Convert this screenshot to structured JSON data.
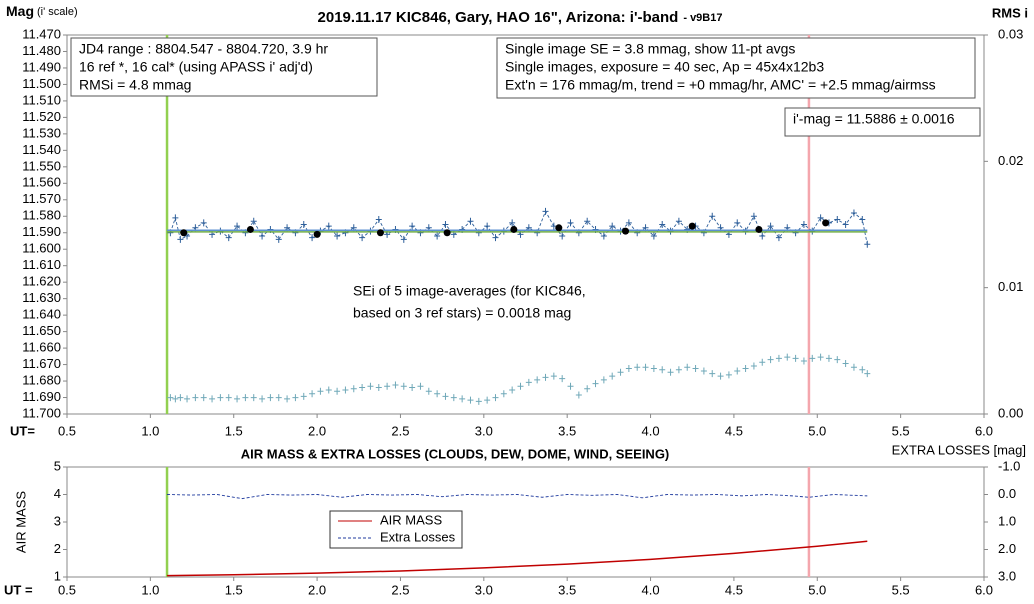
{
  "chart_data": [
    {
      "type": "line",
      "title": "2019.11.17 KIC846, Gary, HAO 16\", Arizona: i'-band",
      "subtitle": "- v9B17",
      "ylabel": "Mag",
      "ylabel_note": "(i' scale)",
      "y2label": "RMS i",
      "xlabel": "UT=",
      "xlim": [
        0.5,
        6.0
      ],
      "xticks": [
        0.5,
        {
          "value": 1,
          "label": "1.0"
        },
        1.5,
        {
          "value": 2,
          "label": "2.0"
        },
        2.5,
        {
          "value": 3,
          "label": "3.0"
        },
        3.5,
        {
          "value": 4,
          "label": "4.0"
        },
        4.5,
        {
          "value": 5,
          "label": "5.0"
        },
        5.5,
        {
          "value": 6,
          "label": "6.0"
        }
      ],
      "ylim": [
        11.7,
        11.47
      ],
      "yticks": [
        {
          "value": 11.47,
          "label": "11.470"
        },
        {
          "value": 11.48,
          "label": "11.480"
        },
        {
          "value": 11.49,
          "label": "11.490"
        },
        {
          "value": 11.5,
          "label": "11.500"
        },
        {
          "value": 11.51,
          "label": "11.510"
        },
        {
          "value": 11.52,
          "label": "11.520"
        },
        {
          "value": 11.53,
          "label": "11.530"
        },
        {
          "value": 11.54,
          "label": "11.540"
        },
        {
          "value": 11.55,
          "label": "11.550"
        },
        {
          "value": 11.56,
          "label": "11.560"
        },
        {
          "value": 11.57,
          "label": "11.570"
        },
        {
          "value": 11.58,
          "label": "11.580"
        },
        {
          "value": 11.59,
          "label": "11.590"
        },
        {
          "value": 11.6,
          "label": "11.600"
        },
        {
          "value": 11.61,
          "label": "11.610"
        },
        {
          "value": 11.62,
          "label": "11.620"
        },
        {
          "value": 11.63,
          "label": "11.630"
        },
        {
          "value": 11.64,
          "label": "11.640"
        },
        {
          "value": 11.65,
          "label": "11.650"
        },
        {
          "value": 11.66,
          "label": "11.660"
        },
        {
          "value": 11.67,
          "label": "11.670"
        },
        {
          "value": 11.68,
          "label": "11.680"
        },
        {
          "value": 11.69,
          "label": "11.690"
        },
        {
          "value": 11.7,
          "label": "11.700"
        }
      ],
      "y2lim": [
        0,
        0.03
      ],
      "y2ticks": [
        {
          "value": 0,
          "label": "0.00"
        },
        {
          "value": 0.01,
          "label": "0.01"
        },
        {
          "value": 0.02,
          "label": "0.02"
        },
        {
          "value": 0.03,
          "label": "0.03"
        }
      ],
      "vlines": [
        {
          "x": 1.1,
          "color": "#92d050"
        },
        {
          "x": 4.95,
          "color": "#f4a6ad"
        }
      ],
      "x": [
        1.12,
        1.15,
        1.18,
        1.22,
        1.27,
        1.32,
        1.37,
        1.42,
        1.47,
        1.52,
        1.57,
        1.62,
        1.67,
        1.72,
        1.77,
        1.82,
        1.87,
        1.92,
        1.97,
        2.02,
        2.07,
        2.12,
        2.17,
        2.22,
        2.27,
        2.32,
        2.37,
        2.42,
        2.47,
        2.52,
        2.57,
        2.62,
        2.67,
        2.72,
        2.77,
        2.82,
        2.87,
        2.92,
        2.97,
        3.02,
        3.07,
        3.12,
        3.17,
        3.22,
        3.27,
        3.32,
        3.37,
        3.42,
        3.47,
        3.52,
        3.57,
        3.62,
        3.67,
        3.72,
        3.77,
        3.82,
        3.87,
        3.92,
        3.97,
        4.02,
        4.07,
        4.12,
        4.17,
        4.22,
        4.27,
        4.32,
        4.37,
        4.42,
        4.47,
        4.52,
        4.57,
        4.62,
        4.67,
        4.72,
        4.77,
        4.82,
        4.87,
        4.92,
        4.97,
        5.02,
        5.07,
        5.12,
        5.17,
        5.22,
        5.27,
        5.3
      ],
      "series": [
        {
          "color": "#2e5f9a",
          "marker": "plus",
          "dash": true,
          "values": [
            11.59,
            11.581,
            11.594,
            11.592,
            11.587,
            11.584,
            11.591,
            11.589,
            11.593,
            11.586,
            11.59,
            11.583,
            11.592,
            11.588,
            11.594,
            11.587,
            11.59,
            11.585,
            11.593,
            11.589,
            11.586,
            11.592,
            11.59,
            11.587,
            11.593,
            11.589,
            11.582,
            11.591,
            11.588,
            11.594,
            11.586,
            11.59,
            11.587,
            11.592,
            11.585,
            11.591,
            11.588,
            11.583,
            11.59,
            11.586,
            11.593,
            11.589,
            11.584,
            11.591,
            11.587,
            11.59,
            11.577,
            11.586,
            11.592,
            11.584,
            11.59,
            11.583,
            11.588,
            11.592,
            11.586,
            11.589,
            11.584,
            11.59,
            11.587,
            11.592,
            11.585,
            11.589,
            11.583,
            11.588,
            11.586,
            11.59,
            11.58,
            11.587,
            11.591,
            11.584,
            11.589,
            11.58,
            11.592,
            11.586,
            11.593,
            11.587,
            11.59,
            11.585,
            11.589,
            11.581,
            11.584,
            11.582,
            11.585,
            11.578,
            11.582,
            11.597
          ]
        },
        {
          "color": "#6fa8b8",
          "marker": "plus",
          "axis": "y2",
          "values": [
            0.0013,
            0.0012,
            0.0013,
            0.0012,
            0.0013,
            0.0013,
            0.0012,
            0.0013,
            0.0013,
            0.0012,
            0.0013,
            0.0013,
            0.0012,
            0.0013,
            0.0013,
            0.0012,
            0.0013,
            0.0014,
            0.0016,
            0.0018,
            0.0019,
            0.0018,
            0.0019,
            0.002,
            0.0021,
            0.0022,
            0.0021,
            0.0022,
            0.0023,
            0.0022,
            0.0021,
            0.0022,
            0.0018,
            0.0016,
            0.0014,
            0.0013,
            0.0012,
            0.0011,
            0.001,
            0.0011,
            0.0013,
            0.0016,
            0.0019,
            0.0022,
            0.0025,
            0.0027,
            0.0029,
            0.003,
            0.0028,
            0.0022,
            0.0015,
            0.002,
            0.0024,
            0.0027,
            0.003,
            0.0033,
            0.0036,
            0.0037,
            0.0037,
            0.0036,
            0.0035,
            0.0033,
            0.0035,
            0.0037,
            0.0036,
            0.0034,
            0.0032,
            0.003,
            0.0031,
            0.0034,
            0.0036,
            0.0038,
            0.0041,
            0.0043,
            0.0044,
            0.0045,
            0.0044,
            0.0042,
            0.0044,
            0.0045,
            0.0044,
            0.0043,
            0.004,
            0.0037,
            0.0035,
            0.0032
          ]
        },
        {
          "color": "#5b8fd0",
          "line": true,
          "x": [
            1.1,
            5.3
          ],
          "values": [
            11.5885,
            11.5885
          ]
        },
        {
          "color": "#70ad47",
          "line": true,
          "x": [
            1.1,
            5.3
          ],
          "values": [
            11.5895,
            11.5895
          ]
        },
        {
          "color": "#000000",
          "marker": "dot",
          "x": [
            1.2,
            1.6,
            2.0,
            2.38,
            2.78,
            3.18,
            3.45,
            3.85,
            4.25,
            4.65,
            5.05
          ],
          "values": [
            11.59,
            11.588,
            11.591,
            11.59,
            11.59,
            11.588,
            11.587,
            11.589,
            11.586,
            11.588,
            11.584
          ]
        }
      ],
      "annotations": [
        {
          "lines": [
            "JD4 range : 8804.547 - 8804.720, 3.9  hr",
            "16 ref *, 16 cal* (using APASS i' adj'd)",
            "RMSi = 4.8 mmag"
          ]
        },
        {
          "lines": [
            "Single image SE = 3.8 mmag, show 11-pt avgs",
            "Single images, exposure = 40 sec, Ap = 45x4x12b3",
            "Ext'n = 176 mmag/m, trend = +0 mmag/hr, AMC' = +2.5 mmag/airmss"
          ]
        },
        {
          "lines": [
            "i'-mag = 11.5886 ± 0.0016"
          ]
        },
        {
          "lines": [
            "SEi of 5 image-averages (for KIC846,",
            "based on 3 ref stars) = 0.0018 mag"
          ]
        }
      ]
    },
    {
      "type": "line",
      "title": "AIR MASS & EXTRA LOSSES (CLOUDS, DEW, DOME, WIND, SEEING)",
      "ylabel": "AIR MASS",
      "y2label": "EXTRA LOSSES [mag]",
      "xlabel": "UT =",
      "xlim": [
        0.5,
        6.0
      ],
      "xticks": [
        0.5,
        {
          "value": 1,
          "label": "1.0"
        },
        1.5,
        {
          "value": 2,
          "label": "2.0"
        },
        2.5,
        {
          "value": 3,
          "label": "3.0"
        },
        3.5,
        {
          "value": 4,
          "label": "4.0"
        },
        4.5,
        {
          "value": 5,
          "label": "5.0"
        },
        5.5,
        {
          "value": 6,
          "label": "6.0"
        }
      ],
      "ylim": [
        1,
        5
      ],
      "yticks": [
        1,
        2,
        3,
        4,
        5
      ],
      "y2lim": [
        3,
        -1
      ],
      "y2ticks": [
        {
          "value": -1,
          "label": "-1.0"
        },
        {
          "value": 0,
          "label": "0.0"
        },
        {
          "value": 1,
          "label": "1.0"
        },
        {
          "value": 2,
          "label": "2.0"
        },
        {
          "value": 3,
          "label": "3.0"
        }
      ],
      "vlines": [
        {
          "x": 1.1,
          "color": "#92d050"
        },
        {
          "x": 4.95,
          "color": "#f4a6ad"
        }
      ],
      "series": [
        {
          "name": "AIR MASS",
          "color": "#c00000",
          "line": true,
          "x": [
            1.1,
            1.5,
            2.0,
            2.5,
            3.0,
            3.5,
            4.0,
            4.5,
            5.0,
            5.3
          ],
          "values": [
            1.05,
            1.08,
            1.14,
            1.22,
            1.33,
            1.47,
            1.64,
            1.86,
            2.12,
            2.3
          ]
        },
        {
          "name": "Extra Losses",
          "color": "#1f3a9e",
          "dash": true,
          "axis": "y2",
          "x": [
            1.1,
            1.25,
            1.4,
            1.55,
            1.7,
            1.85,
            2.0,
            2.15,
            2.3,
            2.45,
            2.6,
            2.75,
            2.9,
            3.05,
            3.2,
            3.35,
            3.5,
            3.65,
            3.8,
            3.95,
            4.1,
            4.25,
            4.4,
            4.55,
            4.7,
            4.85,
            4.95,
            5.1,
            5.3
          ],
          "values": [
            0,
            0.02,
            0,
            0.15,
            0,
            0.02,
            0,
            0.1,
            0,
            0.02,
            0,
            0.08,
            0,
            0.02,
            0,
            0.1,
            0,
            0.03,
            0,
            0.12,
            0,
            0.02,
            0,
            0.05,
            0,
            0.05,
            0.1,
            0,
            0.05
          ]
        }
      ]
    }
  ]
}
